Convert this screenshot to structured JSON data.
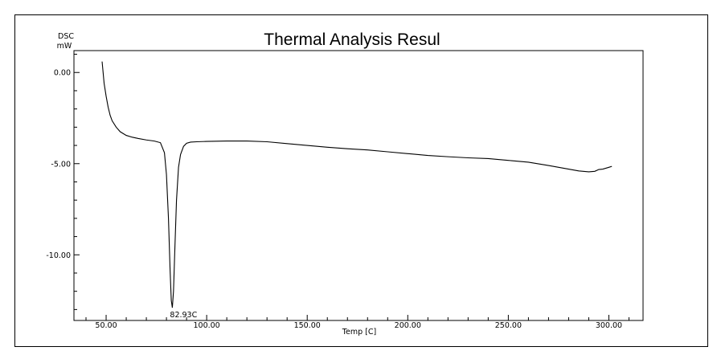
{
  "chart_data": {
    "type": "line",
    "title": "Thermal Analysis Resul",
    "ylabel_top": "DSC",
    "ylabel_unit": "mW",
    "xlabel": "Temp [C]",
    "xlim": [
      34,
      317
    ],
    "ylim": [
      -13.6,
      1.2
    ],
    "xticks": [
      50,
      100,
      150,
      200,
      250,
      300
    ],
    "xtick_labels": [
      "50.00",
      "100.00",
      "150.00",
      "200.00",
      "250.00",
      "300.00"
    ],
    "yticks": [
      0,
      -5,
      -10
    ],
    "ytick_labels": [
      "0.00",
      "-5.00",
      "-10.00"
    ],
    "grid": false,
    "line_color": "#000000",
    "annotations": [
      {
        "text": "82.93C",
        "x": 82.93,
        "y": -12.9
      }
    ],
    "series": [
      {
        "x": [
          48.0,
          48.5,
          49.0,
          50.0,
          51.0,
          52.0,
          53.0,
          55.0,
          57.0,
          60.0,
          63.0,
          66.0,
          70.0,
          74.0,
          77.0,
          79.0,
          80.0,
          81.0,
          81.8,
          82.4,
          82.93,
          83.5,
          84.2,
          85.0,
          86.0,
          87.0,
          88.5,
          90.0,
          92.0,
          95.0,
          100.0,
          110.0,
          120.0,
          130.0,
          140.0,
          150.0,
          160.0,
          170.0,
          180.0,
          190.0,
          200.0,
          210.0,
          220.0,
          230.0,
          240.0,
          250.0,
          260.0,
          270.0,
          280.0,
          285.0,
          290.0,
          293.0,
          295.0,
          297.0,
          300.0,
          301.5
        ],
        "y": [
          0.6,
          0.0,
          -0.6,
          -1.3,
          -1.9,
          -2.35,
          -2.65,
          -3.0,
          -3.25,
          -3.45,
          -3.55,
          -3.62,
          -3.7,
          -3.76,
          -3.85,
          -4.4,
          -5.6,
          -8.0,
          -10.8,
          -12.5,
          -12.9,
          -12.0,
          -9.6,
          -7.0,
          -5.2,
          -4.5,
          -4.05,
          -3.88,
          -3.82,
          -3.8,
          -3.78,
          -3.76,
          -3.76,
          -3.8,
          -3.9,
          -4.0,
          -4.1,
          -4.18,
          -4.25,
          -4.35,
          -4.45,
          -4.55,
          -4.62,
          -4.68,
          -4.72,
          -4.82,
          -4.92,
          -5.1,
          -5.3,
          -5.4,
          -5.45,
          -5.42,
          -5.32,
          -5.3,
          -5.2,
          -5.15
        ]
      }
    ]
  }
}
